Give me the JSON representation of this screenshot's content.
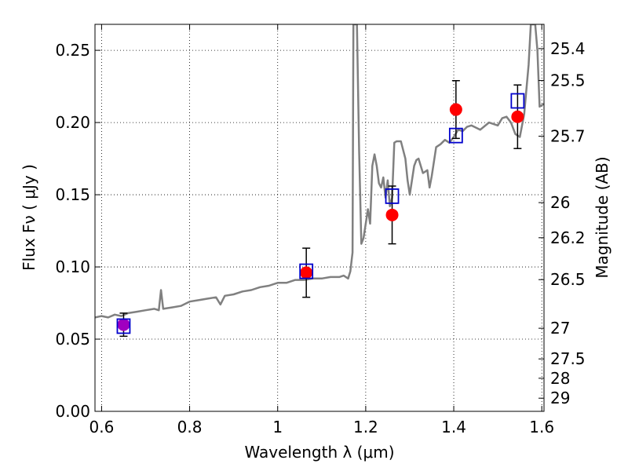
{
  "chart_data": {
    "type": "scatter",
    "title": "",
    "xlabel": "Wavelength  λ (μm)",
    "ylabel": "Flux  Fν  ( μJy )",
    "y2label": "Magnitude (AB)",
    "xlim": [
      0.585,
      1.605
    ],
    "ylim": [
      0.0,
      0.268
    ],
    "grid": true,
    "x_ticks": [
      0.6,
      0.8,
      1.0,
      1.2,
      1.4,
      1.6
    ],
    "x_tick_labels": [
      "0.6",
      "0.8",
      "1",
      "1.2",
      "1.4",
      "1.6"
    ],
    "y_ticks": [
      0.0,
      0.05,
      0.1,
      0.15,
      0.2,
      0.25
    ],
    "y_tick_labels": [
      "0.00",
      "0.05",
      "0.10",
      "0.15",
      "0.20",
      "0.25"
    ],
    "y2_ticks": [
      25.4,
      25.5,
      25.7,
      26,
      26.2,
      26.5,
      27,
      27.5,
      28,
      29
    ],
    "y2_tick_labels": [
      "25.4",
      "25.5",
      "25.7",
      "26",
      "26.2",
      "26.5",
      "27",
      "27.5",
      "28",
      "29"
    ],
    "colors": {
      "model": "#808080",
      "observed": "#ff0000",
      "synthetic": "#0000cc",
      "errorbar": "#000000",
      "overlap": "#a000c0"
    },
    "series": [
      {
        "kind": "line",
        "x": [
          0.585,
          0.6,
          0.615,
          0.63,
          0.645,
          0.66,
          0.68,
          0.7,
          0.72,
          0.73,
          0.735,
          0.74,
          0.76,
          0.78,
          0.8,
          0.82,
          0.84,
          0.86,
          0.87,
          0.88,
          0.9,
          0.92,
          0.94,
          0.96,
          0.98,
          1.0,
          1.02,
          1.04,
          1.06,
          1.08,
          1.1,
          1.12,
          1.14,
          1.15,
          1.16,
          1.165,
          1.17,
          1.172,
          1.175,
          1.18,
          1.185,
          1.19,
          1.195,
          1.2,
          1.205,
          1.21,
          1.215,
          1.22,
          1.225,
          1.23,
          1.235,
          1.24,
          1.245,
          1.25,
          1.255,
          1.26,
          1.265,
          1.27,
          1.28,
          1.29,
          1.295,
          1.3,
          1.31,
          1.315,
          1.32,
          1.33,
          1.34,
          1.345,
          1.35,
          1.36,
          1.37,
          1.38,
          1.39,
          1.4,
          1.41,
          1.42,
          1.43,
          1.44,
          1.46,
          1.48,
          1.5,
          1.51,
          1.52,
          1.53,
          1.54,
          1.55,
          1.56,
          1.57,
          1.575,
          1.58,
          1.585,
          1.59,
          1.595,
          1.6,
          1.605
        ],
        "y": [
          0.065,
          0.066,
          0.065,
          0.067,
          0.066,
          0.068,
          0.069,
          0.07,
          0.071,
          0.07,
          0.084,
          0.071,
          0.072,
          0.073,
          0.076,
          0.077,
          0.078,
          0.079,
          0.074,
          0.08,
          0.081,
          0.083,
          0.084,
          0.086,
          0.087,
          0.089,
          0.089,
          0.091,
          0.091,
          0.092,
          0.092,
          0.093,
          0.093,
          0.094,
          0.092,
          0.097,
          0.11,
          0.268,
          0.268,
          0.268,
          0.18,
          0.116,
          0.12,
          0.13,
          0.14,
          0.13,
          0.17,
          0.178,
          0.17,
          0.158,
          0.155,
          0.162,
          0.148,
          0.16,
          0.142,
          0.148,
          0.186,
          0.187,
          0.187,
          0.175,
          0.16,
          0.15,
          0.17,
          0.174,
          0.175,
          0.165,
          0.167,
          0.155,
          0.163,
          0.183,
          0.185,
          0.188,
          0.186,
          0.19,
          0.195,
          0.194,
          0.197,
          0.198,
          0.195,
          0.2,
          0.198,
          0.203,
          0.204,
          0.2,
          0.192,
          0.19,
          0.206,
          0.24,
          0.268,
          0.268,
          0.268,
          0.25,
          0.211,
          0.212,
          0.213
        ]
      },
      {
        "kind": "points",
        "marker": "circle",
        "x": [
          0.65,
          1.065,
          1.26,
          1.405,
          1.545
        ],
        "y": [
          0.06,
          0.096,
          0.136,
          0.209,
          0.204
        ],
        "yerr": [
          0.008,
          0.017,
          0.02,
          0.02,
          0.022
        ]
      },
      {
        "kind": "points",
        "marker": "square",
        "x": [
          0.65,
          1.065,
          1.26,
          1.405,
          1.545
        ],
        "y": [
          0.059,
          0.097,
          0.149,
          0.191,
          0.215
        ]
      }
    ]
  }
}
